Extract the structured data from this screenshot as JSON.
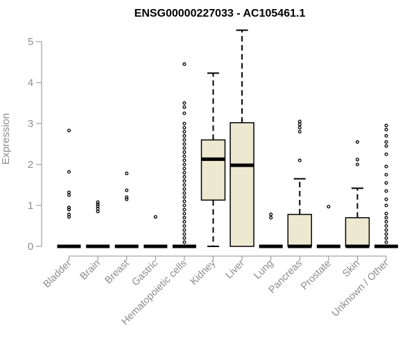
{
  "chart_data": {
    "type": "box",
    "title": "ENSG00000227033 - AC105461.1",
    "ylabel": "Expression",
    "xlabel": "",
    "ylim": [
      0,
      5.3
    ],
    "yticks": [
      0,
      1,
      2,
      3,
      4,
      5
    ],
    "grid": false,
    "box_fill": "#ede8d0",
    "axis_color": "#8c8c8c",
    "categories": [
      "Bladder",
      "Brain",
      "Breast",
      "Gastric",
      "Hematopoietic cells",
      "Kidney",
      "Liver",
      "Lung",
      "Pancreas",
      "Prostate",
      "Skin",
      "Unknown / Other"
    ],
    "boxes": [
      {
        "name": "Bladder",
        "min": 0,
        "q1": 0,
        "median": 0,
        "q3": 0,
        "max": 0,
        "outliers": [
          0.72,
          0.78,
          0.9,
          0.95,
          1.25,
          1.32,
          1.82,
          2.83
        ]
      },
      {
        "name": "Brain",
        "min": 0,
        "q1": 0,
        "median": 0,
        "q3": 0,
        "max": 0,
        "outliers": [
          0.85,
          0.92,
          0.98,
          1.03,
          1.08
        ]
      },
      {
        "name": "Breast",
        "min": 0,
        "q1": 0,
        "median": 0,
        "q3": 0,
        "max": 0,
        "outliers": [
          1.15,
          1.2,
          1.37,
          1.78
        ]
      },
      {
        "name": "Gastric",
        "min": 0,
        "q1": 0,
        "median": 0,
        "q3": 0,
        "max": 0,
        "outliers": [
          0.72
        ]
      },
      {
        "name": "Hematopoietic cells",
        "min": 0,
        "q1": 0,
        "median": 0,
        "q3": 0,
        "max": 0,
        "outliers": [
          0.1,
          0.2,
          0.3,
          0.4,
          0.5,
          0.6,
          0.7,
          0.8,
          0.9,
          1.0,
          1.1,
          1.2,
          1.3,
          1.4,
          1.5,
          1.6,
          1.7,
          1.8,
          1.9,
          2.0,
          2.1,
          2.2,
          2.3,
          2.4,
          2.5,
          2.6,
          2.7,
          2.8,
          2.9,
          3.0,
          3.25,
          3.4,
          3.5,
          4.45
        ]
      },
      {
        "name": "Kidney",
        "min": 0,
        "q1": 1.13,
        "median": 2.13,
        "q3": 2.6,
        "max": 4.23,
        "outliers": []
      },
      {
        "name": "Liver",
        "min": 0,
        "q1": 0,
        "median": 1.98,
        "q3": 3.02,
        "max": 5.28,
        "outliers": []
      },
      {
        "name": "Lung",
        "min": 0,
        "q1": 0,
        "median": 0,
        "q3": 0,
        "max": 0,
        "outliers": [
          0.7,
          0.78
        ]
      },
      {
        "name": "Pancreas",
        "min": 0,
        "q1": 0,
        "median": 0,
        "q3": 0.78,
        "max": 1.65,
        "outliers": [
          2.1,
          2.8,
          2.9,
          2.98,
          3.05
        ]
      },
      {
        "name": "Prostate",
        "min": 0,
        "q1": 0,
        "median": 0,
        "q3": 0,
        "max": 0,
        "outliers": [
          0.97
        ]
      },
      {
        "name": "Skin",
        "min": 0,
        "q1": 0,
        "median": 0,
        "q3": 0.7,
        "max": 1.42,
        "outliers": [
          2.0,
          2.12,
          2.55
        ]
      },
      {
        "name": "Unknown / Other",
        "min": 0,
        "q1": 0,
        "median": 0,
        "q3": 0,
        "max": 0,
        "outliers": [
          0.1,
          0.2,
          0.3,
          0.4,
          0.5,
          0.6,
          0.7,
          0.8,
          1.0,
          1.15,
          1.35,
          1.55,
          1.75,
          1.95,
          2.25,
          2.45,
          2.55,
          2.7,
          2.85,
          2.95
        ]
      }
    ]
  }
}
